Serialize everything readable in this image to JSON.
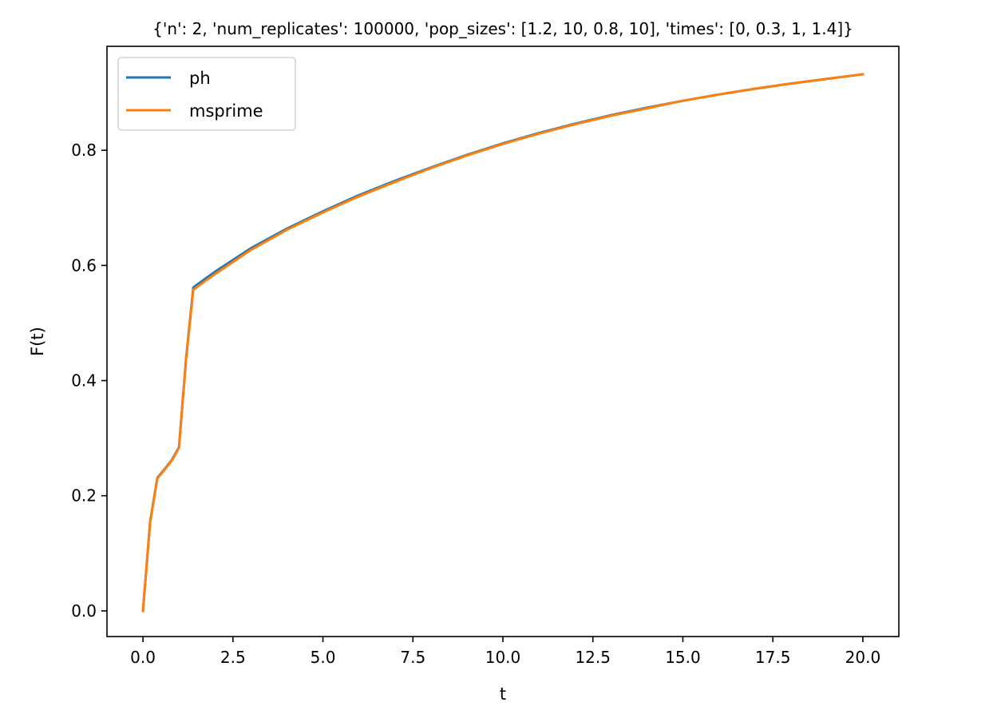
{
  "chart_data": {
    "type": "line",
    "title": "{'n': 2, 'num_replicates': 100000, 'pop_sizes': [1.2, 10, 0.8, 10], 'times': [0, 0.3, 1, 1.4]}",
    "xlabel": "t",
    "ylabel": "F(t)",
    "xlim": [
      -1.0,
      21.0
    ],
    "ylim": [
      -0.0446,
      0.9806
    ],
    "xticks": [
      0.0,
      2.5,
      5.0,
      7.5,
      10.0,
      12.5,
      15.0,
      17.5,
      20.0
    ],
    "xtick_labels": [
      "0.0",
      "2.5",
      "5.0",
      "7.5",
      "10.0",
      "12.5",
      "15.0",
      "17.5",
      "20.0"
    ],
    "yticks": [
      0.0,
      0.2,
      0.4,
      0.6,
      0.8
    ],
    "ytick_labels": [
      "0.0",
      "0.2",
      "0.4",
      "0.6",
      "0.8"
    ],
    "legend_position": "upper-left",
    "grid": false,
    "series": [
      {
        "name": "ph",
        "color": "#1f77b4",
        "x": [
          0.0,
          0.2,
          0.4,
          0.6,
          0.8,
          1.0,
          1.2,
          1.4,
          2.0,
          3.0,
          4.0,
          5.0,
          6.0,
          7.0,
          8.0,
          9.0,
          10.0,
          11.0,
          12.0,
          13.0,
          14.0,
          15.0,
          16.0,
          17.0,
          18.0,
          19.0,
          20.0
        ],
        "y": [
          0.0,
          0.155,
          0.231,
          0.246,
          0.262,
          0.284,
          0.44,
          0.562,
          0.589,
          0.63,
          0.664,
          0.694,
          0.722,
          0.747,
          0.77,
          0.792,
          0.812,
          0.83,
          0.846,
          0.861,
          0.874,
          0.886,
          0.897,
          0.907,
          0.916,
          0.924,
          0.932
        ]
      },
      {
        "name": "msprime",
        "color": "#ff7f0e",
        "x": [
          0.0,
          0.2,
          0.4,
          0.6,
          0.8,
          1.0,
          1.2,
          1.4,
          2.0,
          3.0,
          4.0,
          5.0,
          6.0,
          7.0,
          8.0,
          9.0,
          10.0,
          11.0,
          12.0,
          13.0,
          14.0,
          15.0,
          16.0,
          17.0,
          18.0,
          19.0,
          20.0
        ],
        "y": [
          0.0,
          0.154,
          0.23,
          0.245,
          0.261,
          0.283,
          0.438,
          0.558,
          0.585,
          0.627,
          0.662,
          0.692,
          0.72,
          0.745,
          0.769,
          0.791,
          0.811,
          0.829,
          0.845,
          0.86,
          0.873,
          0.886,
          0.897,
          0.907,
          0.916,
          0.924,
          0.932
        ]
      }
    ]
  }
}
